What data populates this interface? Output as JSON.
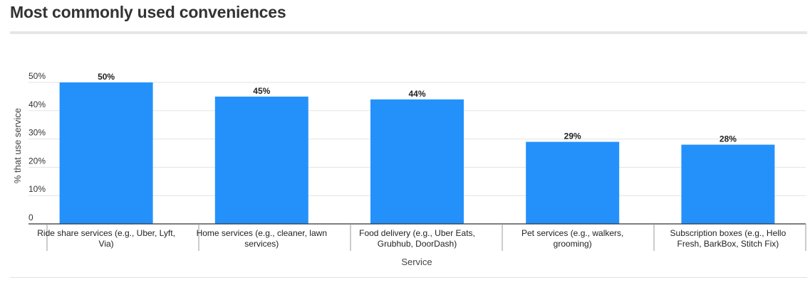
{
  "chart_data": {
    "type": "bar",
    "title": "Most commonly used conveniences",
    "xlabel": "Service",
    "ylabel": "% that use service",
    "categories": [
      [
        "Ride share services (e.g., Uber, Lyft,",
        "Via)"
      ],
      [
        "Home services (e.g., cleaner, lawn",
        "services)"
      ],
      [
        "Food delivery (e.g., Uber Eats,",
        "Grubhub, DoorDash)"
      ],
      [
        "Pet services (e.g., walkers,",
        "grooming)"
      ],
      [
        "Subscription boxes (e.g., Hello",
        "Fresh, BarkBox, Stitch Fix)"
      ]
    ],
    "values": [
      50,
      45,
      44,
      29,
      28
    ],
    "data_labels": [
      "50%",
      "45%",
      "44%",
      "29%",
      "28%"
    ],
    "ylim": [
      0,
      50
    ],
    "yticks": [
      0,
      10,
      20,
      30,
      40,
      50
    ],
    "ytick_labels": [
      "0",
      "10%",
      "20%",
      "30%",
      "40%",
      "50%"
    ],
    "bar_color": "#2491fb",
    "grid": true,
    "legend": "none"
  }
}
